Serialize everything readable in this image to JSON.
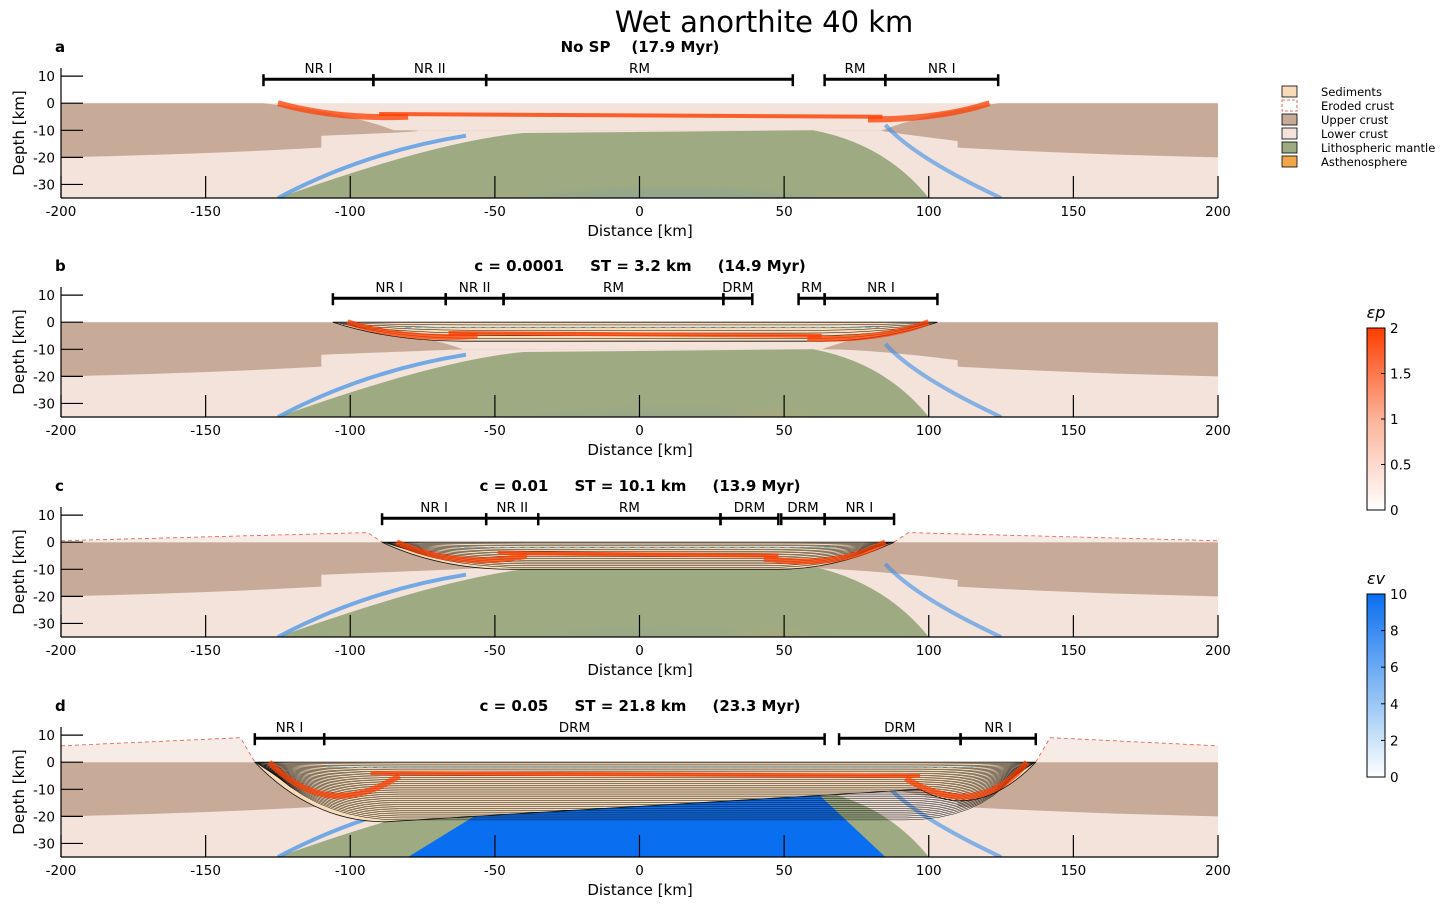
{
  "title": "Wet anorthite 40 km",
  "xlabel": "Distance [km]",
  "ylabel": "Depth [km]",
  "x_ticks": [
    -200,
    -150,
    -100,
    -50,
    0,
    50,
    100,
    150,
    200
  ],
  "y_ticks": [
    10,
    0,
    -10,
    -20,
    -30
  ],
  "xlim": [
    -200,
    200
  ],
  "ylim": [
    -35,
    13
  ],
  "legend": [
    {
      "label": "Sediments",
      "color": "#f8dbb8"
    },
    {
      "label": "Eroded crust",
      "color": "#ffffff",
      "dashed_border": "#e03c2c"
    },
    {
      "label": "Upper crust",
      "color": "#c8aa98"
    },
    {
      "label": "Lower crust",
      "color": "#f3e3db"
    },
    {
      "label": "Lithospheric mantle",
      "color": "#9eaa82"
    },
    {
      "label": "Asthenosphere",
      "color": "#f2a64a"
    }
  ],
  "colorbars": [
    {
      "symbol": "εp",
      "ticks": [
        "2",
        "1.5",
        "1",
        "0.5",
        "0"
      ],
      "color_top": "#ff3d00",
      "color_bottom": "#ffffff"
    },
    {
      "symbol": "εv",
      "ticks": [
        "10",
        "8",
        "6",
        "4",
        "2",
        "0"
      ],
      "color_top": "#0a6ef0",
      "color_bottom": "#ffffff"
    }
  ],
  "panels": [
    {
      "letter": "a",
      "subtitle": "No SP    (17.9 Myr)",
      "domains": [
        {
          "label": "NR I",
          "from": -130,
          "to": -92
        },
        {
          "label": "NR II",
          "from": -92,
          "to": -53
        },
        {
          "label": "RM",
          "from": -53,
          "to": 53
        },
        {
          "label": "RM",
          "from": 64,
          "to": 85
        },
        {
          "label": "NR I",
          "from": 85,
          "to": 124
        }
      ],
      "has_sediments": false
    },
    {
      "letter": "b",
      "subtitle": "c = 0.0001     ST = 3.2 km     (14.9 Myr)",
      "domains": [
        {
          "label": "NR I",
          "from": -106,
          "to": -67
        },
        {
          "label": "NR II",
          "from": -67,
          "to": -47
        },
        {
          "label": "RM",
          "from": -47,
          "to": 29
        },
        {
          "label": "DRM",
          "from": 29,
          "to": 39
        },
        {
          "label": "RM",
          "from": 55,
          "to": 64
        },
        {
          "label": "NR I",
          "from": 64,
          "to": 103
        }
      ],
      "has_sediments": true
    },
    {
      "letter": "c",
      "subtitle": "c = 0.01     ST = 10.1 km     (13.9 Myr)",
      "domains": [
        {
          "label": "NR I",
          "from": -89,
          "to": -53
        },
        {
          "label": "NR II",
          "from": -53,
          "to": -35
        },
        {
          "label": "RM",
          "from": -35,
          "to": 28
        },
        {
          "label": "DRM",
          "from": 28,
          "to": 48
        },
        {
          "label": "DRM",
          "from": 49,
          "to": 64
        },
        {
          "label": "NR I",
          "from": 64,
          "to": 88
        }
      ],
      "has_sediments": true
    },
    {
      "letter": "d",
      "subtitle": "c = 0.05     ST = 21.8 km     (23.3 Myr)",
      "domains": [
        {
          "label": "NR I",
          "from": -133,
          "to": -109
        },
        {
          "label": "DRM",
          "from": -109,
          "to": 64
        },
        {
          "label": "DRM",
          "from": 69,
          "to": 111
        },
        {
          "label": "NR I",
          "from": 111,
          "to": 137
        }
      ],
      "has_sediments": true
    }
  ]
}
